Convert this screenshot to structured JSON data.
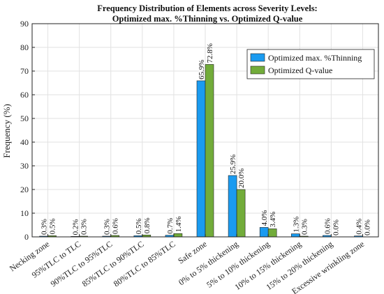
{
  "chart_data": {
    "type": "bar",
    "title": "Frequency Distribution of Elements across Severity Levels:",
    "subtitle": "Optimized max. %Thinning vs. Optimized Q-value",
    "xlabel": "",
    "ylabel": "Frequency (%)",
    "ylim": [
      0,
      90
    ],
    "yticks": [
      0,
      10,
      20,
      30,
      40,
      50,
      60,
      70,
      80,
      90
    ],
    "grid": true,
    "legend_position": "top-right",
    "categories": [
      "Necking zone",
      "95%TLC to TLC",
      "90%TLC to 95%TLC",
      "85%TLC to 90%TLC",
      "80%TLC to 85%TLC",
      "Safe zone",
      "0% to 5% thickening",
      "5% to 10% thickening",
      "10% to 15% thickening",
      "15% to 20% thickening",
      "Excessive wrinkling zone"
    ],
    "series": [
      {
        "name": "Optimized max. %Thinning",
        "color": "#1a9bf0",
        "values": [
          0.3,
          0.2,
          0.3,
          0.5,
          0.7,
          65.9,
          25.9,
          4.0,
          1.3,
          0.6,
          0.4
        ],
        "labels": [
          "0.3%",
          "0.2%",
          "0.3%",
          "0.5%",
          "0.7%",
          "65.9%",
          "25.9%",
          "4.0%",
          "1.3%",
          "0.6%",
          "0.4%"
        ]
      },
      {
        "name": "Optimized Q-value",
        "color": "#72ac3a",
        "values": [
          0.5,
          0.3,
          0.6,
          0.8,
          1.4,
          72.8,
          20.0,
          3.4,
          0.3,
          0.0,
          0.0
        ],
        "labels": [
          "0.5%",
          "0.3%",
          "0.6%",
          "0.8%",
          "1.4%",
          "72.8%",
          "20.0%",
          "3.4%",
          "0.3%",
          "0.0%",
          "0.0%"
        ]
      }
    ]
  }
}
